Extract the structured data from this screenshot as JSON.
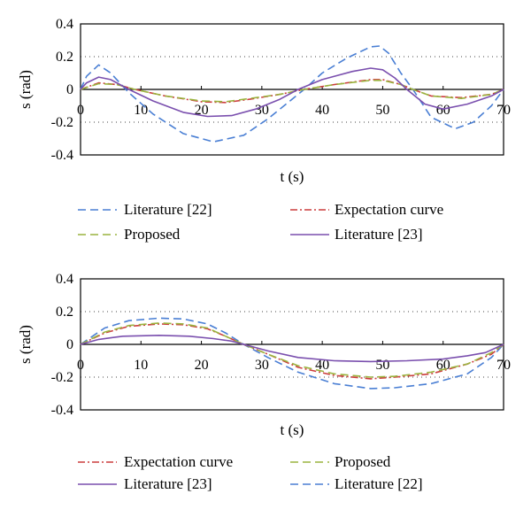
{
  "chart_data": [
    {
      "type": "line",
      "xlabel": "t (s)",
      "ylabel": "s (rad)",
      "xlim": [
        0,
        70
      ],
      "ylim": [
        -0.4,
        0.4
      ],
      "xticks": [
        "0",
        "10",
        "20",
        "30",
        "40",
        "50",
        "60",
        "70"
      ],
      "yticks": [
        "0.4",
        "0.2",
        "0",
        "-0.2",
        "-0.4"
      ],
      "grid": "dotted horizontal at ±0.2",
      "legend": [
        {
          "label": "Literature [22]",
          "series": "lit22"
        },
        {
          "label": "Expectation curve",
          "series": "expect"
        },
        {
          "label": "Proposed",
          "series": "proposed"
        },
        {
          "label": "Literature [23]",
          "series": "lit23"
        }
      ],
      "series": [
        {
          "name": "Literature [22]",
          "key": "lit22",
          "color": "#4a7fd4",
          "dash": "dashed",
          "points": [
            [
              0,
              0
            ],
            [
              1,
              0.08
            ],
            [
              3,
              0.15
            ],
            [
              5,
              0.1
            ],
            [
              8,
              -0.02
            ],
            [
              12,
              -0.15
            ],
            [
              17,
              -0.27
            ],
            [
              22,
              -0.32
            ],
            [
              27,
              -0.28
            ],
            [
              31,
              -0.18
            ],
            [
              35,
              -0.06
            ],
            [
              37,
              0
            ],
            [
              40,
              0.1
            ],
            [
              44,
              0.19
            ],
            [
              48,
              0.26
            ],
            [
              49.5,
              0.265
            ],
            [
              51,
              0.22
            ],
            [
              53,
              0.1
            ],
            [
              55,
              0
            ],
            [
              58,
              -0.17
            ],
            [
              62,
              -0.24
            ],
            [
              65,
              -0.2
            ],
            [
              68,
              -0.1
            ],
            [
              70,
              0
            ]
          ]
        },
        {
          "name": "Expectation curve",
          "key": "expect",
          "color": "#cc3d3d",
          "dash": "dashdot",
          "points": [
            [
              0,
              0
            ],
            [
              3,
              0.04
            ],
            [
              6,
              0.03
            ],
            [
              9,
              0
            ],
            [
              14,
              -0.04
            ],
            [
              20,
              -0.075
            ],
            [
              24,
              -0.08
            ],
            [
              28,
              -0.06
            ],
            [
              33,
              -0.03
            ],
            [
              37,
              0
            ],
            [
              42,
              0.03
            ],
            [
              48,
              0.06
            ],
            [
              50,
              0.06
            ],
            [
              53,
              0.03
            ],
            [
              55,
              0
            ],
            [
              58,
              -0.04
            ],
            [
              63,
              -0.05
            ],
            [
              68,
              -0.03
            ],
            [
              70,
              0
            ]
          ]
        },
        {
          "name": "Proposed",
          "key": "proposed",
          "color": "#9ab33e",
          "dash": "dashed",
          "points": [
            [
              0,
              0
            ],
            [
              3,
              0.035
            ],
            [
              6,
              0.03
            ],
            [
              9,
              0
            ],
            [
              14,
              -0.04
            ],
            [
              20,
              -0.07
            ],
            [
              24,
              -0.075
            ],
            [
              28,
              -0.055
            ],
            [
              33,
              -0.03
            ],
            [
              37,
              0
            ],
            [
              42,
              0.03
            ],
            [
              48,
              0.055
            ],
            [
              50,
              0.055
            ],
            [
              53,
              0.03
            ],
            [
              55,
              0
            ],
            [
              58,
              -0.04
            ],
            [
              63,
              -0.055
            ],
            [
              68,
              -0.03
            ],
            [
              70,
              0
            ]
          ]
        },
        {
          "name": "Literature [23]",
          "key": "lit23",
          "color": "#7a4fae",
          "dash": "solid",
          "points": [
            [
              0,
              0
            ],
            [
              1,
              0.04
            ],
            [
              3,
              0.075
            ],
            [
              5,
              0.06
            ],
            [
              8,
              0
            ],
            [
              12,
              -0.07
            ],
            [
              17,
              -0.14
            ],
            [
              21,
              -0.165
            ],
            [
              25,
              -0.16
            ],
            [
              29,
              -0.12
            ],
            [
              33,
              -0.06
            ],
            [
              36,
              0
            ],
            [
              40,
              0.06
            ],
            [
              45,
              0.11
            ],
            [
              48,
              0.13
            ],
            [
              50,
              0.12
            ],
            [
              52,
              0.07
            ],
            [
              54,
              0
            ],
            [
              57,
              -0.09
            ],
            [
              60,
              -0.12
            ],
            [
              64,
              -0.09
            ],
            [
              68,
              -0.04
            ],
            [
              70,
              0
            ]
          ]
        }
      ]
    },
    {
      "type": "line",
      "xlabel": "t (s)",
      "ylabel": "s (rad)",
      "xlim": [
        0,
        70
      ],
      "ylim": [
        -0.4,
        0.4
      ],
      "xticks": [
        "0",
        "10",
        "20",
        "30",
        "40",
        "50",
        "60",
        "70"
      ],
      "yticks": [
        "0.4",
        "0.2",
        "0",
        "-0.2",
        "-0.4"
      ],
      "grid": "dotted horizontal at ±0.2",
      "legend": [
        {
          "label": "Expectation curve",
          "series": "expect"
        },
        {
          "label": "Proposed",
          "series": "proposed"
        },
        {
          "label": "Literature [23]",
          "series": "lit23"
        },
        {
          "label": "Literature [22]",
          "series": "lit22"
        }
      ],
      "series": [
        {
          "name": "Literature [22]",
          "key": "lit22",
          "color": "#4a7fd4",
          "dash": "dashed",
          "points": [
            [
              0,
              0
            ],
            [
              4,
              0.1
            ],
            [
              8,
              0.145
            ],
            [
              13,
              0.16
            ],
            [
              17,
              0.155
            ],
            [
              21,
              0.125
            ],
            [
              24,
              0.07
            ],
            [
              27,
              0
            ],
            [
              31,
              -0.08
            ],
            [
              36,
              -0.17
            ],
            [
              42,
              -0.24
            ],
            [
              48,
              -0.27
            ],
            [
              52,
              -0.265
            ],
            [
              58,
              -0.24
            ],
            [
              64,
              -0.18
            ],
            [
              68,
              -0.08
            ],
            [
              70,
              0
            ]
          ]
        },
        {
          "name": "Expectation curve",
          "key": "expect",
          "color": "#cc3d3d",
          "dash": "dashdot",
          "points": [
            [
              0,
              0
            ],
            [
              4,
              0.07
            ],
            [
              8,
              0.11
            ],
            [
              13,
              0.125
            ],
            [
              17,
              0.12
            ],
            [
              21,
              0.095
            ],
            [
              24,
              0.05
            ],
            [
              27,
              0
            ],
            [
              31,
              -0.06
            ],
            [
              36,
              -0.14
            ],
            [
              42,
              -0.19
            ],
            [
              48,
              -0.21
            ],
            [
              52,
              -0.2
            ],
            [
              58,
              -0.18
            ],
            [
              64,
              -0.12
            ],
            [
              68,
              -0.06
            ],
            [
              70,
              0
            ]
          ]
        },
        {
          "name": "Proposed",
          "key": "proposed",
          "color": "#9ab33e",
          "dash": "dashed",
          "points": [
            [
              0,
              0
            ],
            [
              4,
              0.075
            ],
            [
              8,
              0.115
            ],
            [
              13,
              0.13
            ],
            [
              17,
              0.125
            ],
            [
              21,
              0.1
            ],
            [
              24,
              0.05
            ],
            [
              27,
              0
            ],
            [
              31,
              -0.06
            ],
            [
              36,
              -0.13
            ],
            [
              42,
              -0.18
            ],
            [
              48,
              -0.2
            ],
            [
              52,
              -0.195
            ],
            [
              58,
              -0.17
            ],
            [
              64,
              -0.12
            ],
            [
              68,
              -0.05
            ],
            [
              70,
              0
            ]
          ]
        },
        {
          "name": "Literature [23]",
          "key": "lit23",
          "color": "#7a4fae",
          "dash": "solid",
          "points": [
            [
              0,
              0
            ],
            [
              3,
              0.03
            ],
            [
              7,
              0.05
            ],
            [
              13,
              0.055
            ],
            [
              18,
              0.05
            ],
            [
              22,
              0.035
            ],
            [
              25,
              0.02
            ],
            [
              27,
              0
            ],
            [
              31,
              -0.04
            ],
            [
              36,
              -0.08
            ],
            [
              42,
              -0.1
            ],
            [
              48,
              -0.105
            ],
            [
              54,
              -0.1
            ],
            [
              60,
              -0.09
            ],
            [
              64,
              -0.07
            ],
            [
              67,
              -0.05
            ],
            [
              70,
              0
            ]
          ]
        }
      ]
    }
  ]
}
